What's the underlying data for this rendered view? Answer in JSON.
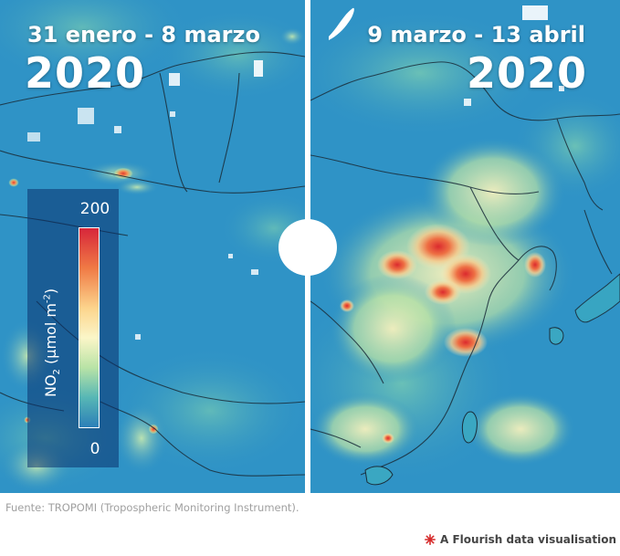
{
  "left_panel": {
    "period": "31 enero - 8 marzo",
    "year": "2020"
  },
  "right_panel": {
    "period": "9 marzo - 13 abril",
    "year": "2020"
  },
  "legend": {
    "title_prefix": "NO",
    "title_subscript": "2",
    "title_unit": " (µmol m",
    "title_superscript": "-2",
    "title_suffix": ")",
    "max": "200",
    "min": "0",
    "colors": [
      "#d7263a",
      "#f07a45",
      "#fcd48c",
      "#fbf6c8",
      "#b9e3a6",
      "#57b7b5",
      "#2c7fb8"
    ]
  },
  "source": "Fuente: TROPOMI (Tropospheric Monitoring Instrument).",
  "credit": {
    "label": "A Flourish data visualisation",
    "icon": "flourish-star-icon",
    "icon_color": "#d62b2b"
  },
  "colors": {
    "ocean_land_base": "#2f92c4",
    "cloud": "#ffffff",
    "divider": "#ffffff"
  }
}
